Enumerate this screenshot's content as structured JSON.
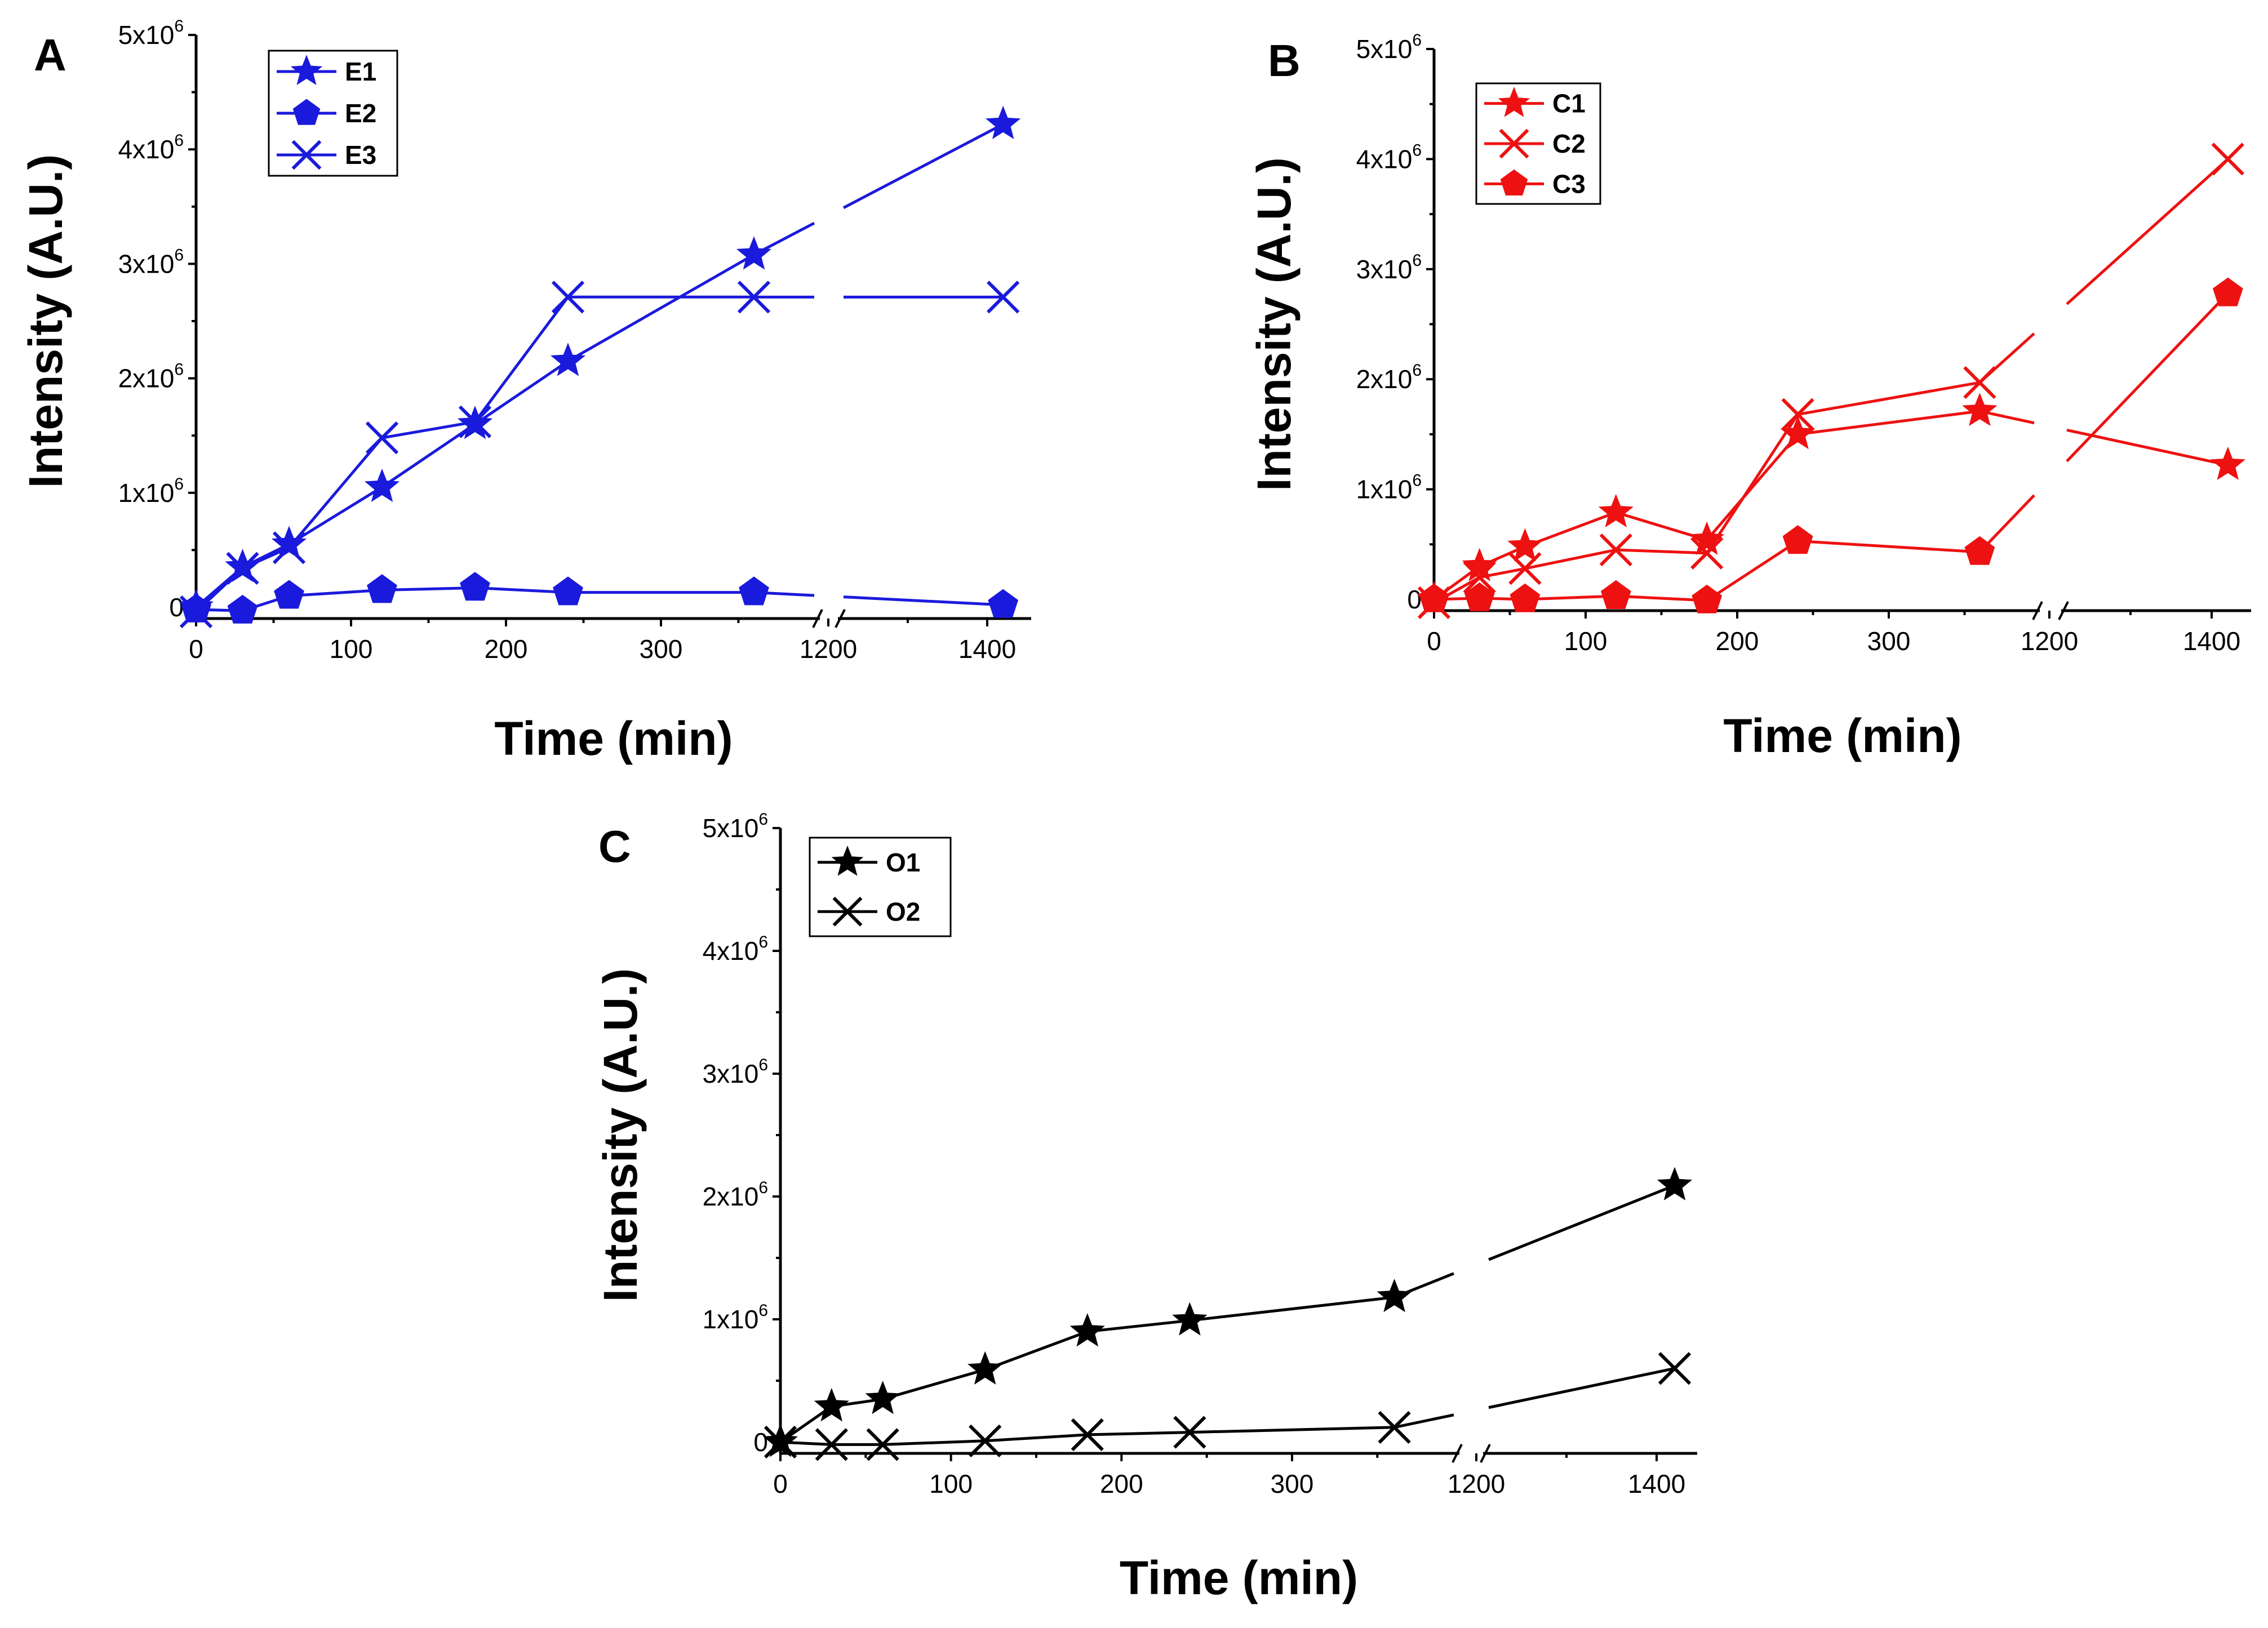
{
  "chart_data": [
    {
      "panel": "A",
      "type": "line",
      "xlabel": "Time (min)",
      "ylabel": "Intensity (A.U.)",
      "x_ticks": [
        "0",
        "100",
        "200",
        "300",
        "1200",
        "1400"
      ],
      "y_ticks": [
        "0",
        "1x10",
        "2x10",
        "3x10",
        "4x10",
        "5x10"
      ],
      "y_tick_exponent": "6",
      "ylim": [
        0,
        5000000
      ],
      "x_break": [
        360,
        1200
      ],
      "color": "#1a1adc",
      "series": [
        {
          "name": "E1",
          "marker": "star",
          "x": [
            0,
            30,
            60,
            120,
            180,
            240,
            360,
            1420
          ],
          "y": [
            0,
            350000,
            550000,
            1050000,
            1600000,
            2150000,
            3080000,
            4220000
          ]
        },
        {
          "name": "E2",
          "marker": "pentagon",
          "x": [
            0,
            30,
            60,
            120,
            180,
            240,
            360,
            1420
          ],
          "y": [
            -20000,
            -30000,
            100000,
            150000,
            170000,
            130000,
            130000,
            20000
          ]
        },
        {
          "name": "E3",
          "marker": "x",
          "x": [
            0,
            30,
            60,
            120,
            180,
            240,
            360,
            1420
          ],
          "y": [
            -40000,
            340000,
            520000,
            1480000,
            1620000,
            2710000,
            2710000,
            2710000
          ]
        }
      ]
    },
    {
      "panel": "B",
      "type": "line",
      "xlabel": "Time (min)",
      "ylabel": "Intensity (A.U.)",
      "x_ticks": [
        "0",
        "100",
        "200",
        "300",
        "1200",
        "1400"
      ],
      "y_ticks": [
        "0",
        "1x10",
        "2x10",
        "3x10",
        "4x10",
        "5x10"
      ],
      "y_tick_exponent": "6",
      "ylim": [
        0,
        5000000
      ],
      "x_break": [
        360,
        1200
      ],
      "color": "#ee1111",
      "series": [
        {
          "name": "C1",
          "marker": "star",
          "x": [
            0,
            30,
            60,
            120,
            180,
            240,
            360,
            1420
          ],
          "y": [
            0,
            300000,
            480000,
            790000,
            540000,
            1500000,
            1710000,
            1220000
          ]
        },
        {
          "name": "C2",
          "marker": "x",
          "x": [
            0,
            30,
            60,
            120,
            180,
            240,
            360,
            1420
          ],
          "y": [
            -30000,
            200000,
            280000,
            450000,
            420000,
            1680000,
            1970000,
            4000000
          ]
        },
        {
          "name": "C3",
          "marker": "pentagon",
          "x": [
            0,
            30,
            60,
            120,
            180,
            240,
            360,
            1420
          ],
          "y": [
            0,
            10000,
            0,
            30000,
            -10000,
            530000,
            430000,
            2780000
          ]
        }
      ]
    },
    {
      "panel": "C",
      "type": "line",
      "xlabel": "Time (min)",
      "ylabel": "Intensity (A.U.)",
      "x_ticks": [
        "0",
        "100",
        "200",
        "300",
        "1200",
        "1400"
      ],
      "y_ticks": [
        "0",
        "1x10",
        "2x10",
        "3x10",
        "4x10",
        "5x10"
      ],
      "y_tick_exponent": "6",
      "ylim": [
        0,
        5000000
      ],
      "x_break": [
        360,
        1200
      ],
      "color": "#000000",
      "series": [
        {
          "name": "O1",
          "marker": "star",
          "x": [
            0,
            30,
            60,
            120,
            180,
            240,
            360,
            1420
          ],
          "y": [
            0,
            290000,
            350000,
            590000,
            900000,
            990000,
            1180000,
            2090000
          ]
        },
        {
          "name": "O2",
          "marker": "x",
          "x": [
            0,
            30,
            60,
            120,
            180,
            240,
            360,
            1420
          ],
          "y": [
            0,
            -20000,
            -20000,
            10000,
            60000,
            80000,
            120000,
            600000
          ]
        }
      ]
    }
  ]
}
